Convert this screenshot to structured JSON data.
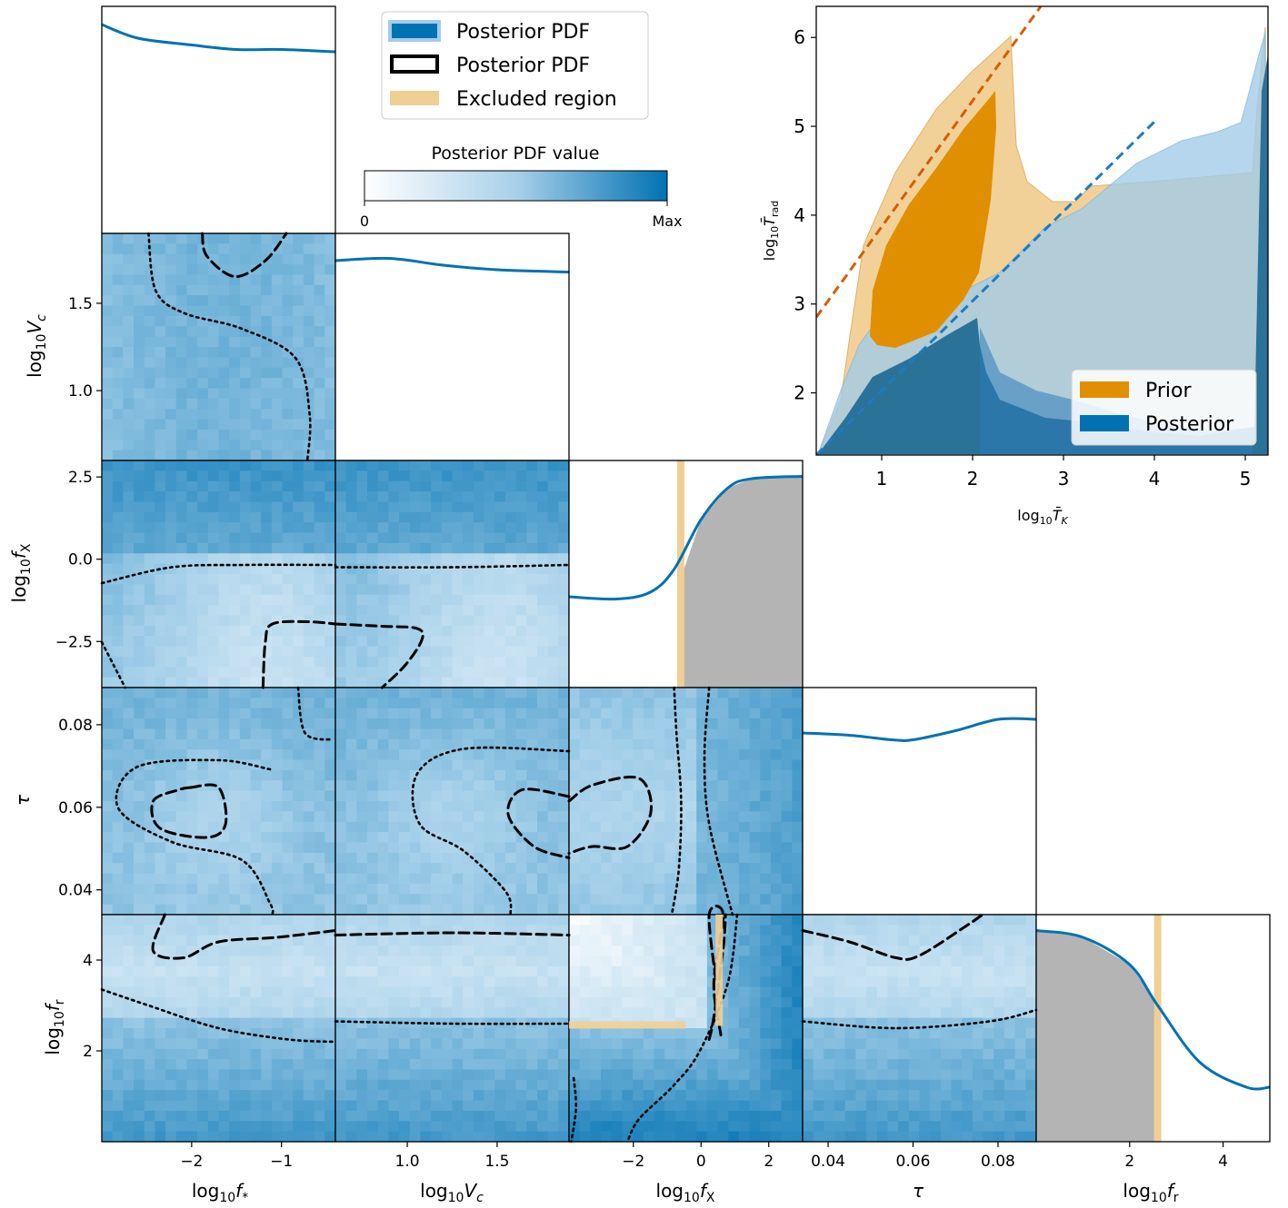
{
  "colors": {
    "posterior": "#0072b2",
    "posterior_light": "#a3cce9",
    "prior": "#e69f00",
    "prior_light": "#f0c987",
    "excluded": "#f0cf95",
    "grey_fill": "#b4b4b4",
    "prior_line": "#d55e00"
  },
  "legend": {
    "items": [
      "Posterior PDF",
      "Posterior PDF",
      "Excluded region"
    ]
  },
  "colorbar": {
    "title": "Posterior PDF value",
    "min_label": "0",
    "max_label": "Max"
  },
  "corner": {
    "params": [
      {
        "key": "fstar",
        "label": "log10f*",
        "xlim": [
          -3.0,
          -0.4
        ],
        "ticks": [
          -2,
          -1
        ],
        "tick_labels": [
          "−2",
          "−1"
        ]
      },
      {
        "key": "Vc",
        "label": "log10Vc",
        "xlim": [
          0.6,
          1.9
        ],
        "ticks": [
          1.0,
          1.5
        ],
        "tick_labels": [
          "1.0",
          "1.5"
        ]
      },
      {
        "key": "fX",
        "label": "log10fX",
        "xlim": [
          -3.9,
          3.0
        ],
        "ticks": [
          -2,
          0,
          2
        ],
        "tick_labels": [
          "−2",
          "0",
          "2"
        ],
        "yticks": [
          -2.5,
          0.0,
          2.5
        ],
        "ytick_labels": [
          "−2.5",
          "0.0",
          "2.5"
        ]
      },
      {
        "key": "tau",
        "label": "τ",
        "xlim": [
          0.034,
          0.089
        ],
        "ticks": [
          0.04,
          0.06,
          0.08
        ],
        "tick_labels": [
          "0.04",
          "0.06",
          "0.08"
        ]
      },
      {
        "key": "fr",
        "label": "log10fr",
        "xlim": [
          0.0,
          5.0
        ],
        "ticks": [
          2,
          4
        ],
        "tick_labels": [
          "2",
          "4"
        ]
      }
    ],
    "Vc_yticks": [
      "1.0",
      "1.5"
    ],
    "excluded_fX": -0.6,
    "excluded_fr": 2.6
  },
  "chart_data": [
    {
      "type": "line",
      "subtype": "corner-plot",
      "diagonals": [
        {
          "param": "log10f*",
          "x": [
            -3.0,
            -2.6,
            -2.0,
            -1.5,
            -1.0,
            -0.4
          ],
          "y": [
            0.92,
            0.86,
            0.83,
            0.81,
            0.81,
            0.8
          ]
        },
        {
          "param": "log10Vc",
          "x": [
            0.6,
            0.9,
            1.2,
            1.5,
            1.9
          ],
          "y": [
            0.88,
            0.89,
            0.86,
            0.84,
            0.83
          ]
        },
        {
          "param": "log10fX",
          "x": [
            -3.9,
            -2.5,
            -1.5,
            -0.8,
            0.0,
            0.8,
            1.5,
            3.0
          ],
          "y": [
            0.4,
            0.39,
            0.42,
            0.52,
            0.74,
            0.88,
            0.92,
            0.93
          ],
          "shaded_region": "log10fX > -0.6"
        },
        {
          "param": "τ",
          "x": [
            0.034,
            0.045,
            0.055,
            0.06,
            0.07,
            0.08,
            0.089
          ],
          "y": [
            0.8,
            0.79,
            0.77,
            0.77,
            0.81,
            0.86,
            0.86
          ]
        },
        {
          "param": "log10fr",
          "x": [
            0.0,
            1.0,
            2.0,
            2.6,
            3.5,
            4.5,
            5.0
          ],
          "y": [
            0.93,
            0.9,
            0.78,
            0.6,
            0.35,
            0.24,
            0.24
          ],
          "shaded_region": "log10fr < 2.6"
        }
      ],
      "contours": {
        "dashed": "Posterior PDF (inner)",
        "dotted": "Posterior PDF (outer)"
      }
    },
    {
      "type": "area",
      "xlabel": "log10T̄K",
      "ylabel": "log10T̄rad",
      "xlim": [
        0.28,
        5.25
      ],
      "ylim": [
        1.3,
        6.35
      ],
      "xticks": [
        1,
        2,
        3,
        4,
        5
      ],
      "yticks": [
        2,
        3,
        4,
        5,
        6
      ],
      "series": [
        {
          "name": "Prior"
        },
        {
          "name": "Posterior"
        }
      ],
      "lines": [
        {
          "x": [
            0.28,
            2.75
          ],
          "y": [
            2.85,
            6.35
          ]
        },
        {
          "x": [
            0.28,
            4.0
          ],
          "y": [
            1.3,
            5.05
          ]
        }
      ]
    }
  ]
}
